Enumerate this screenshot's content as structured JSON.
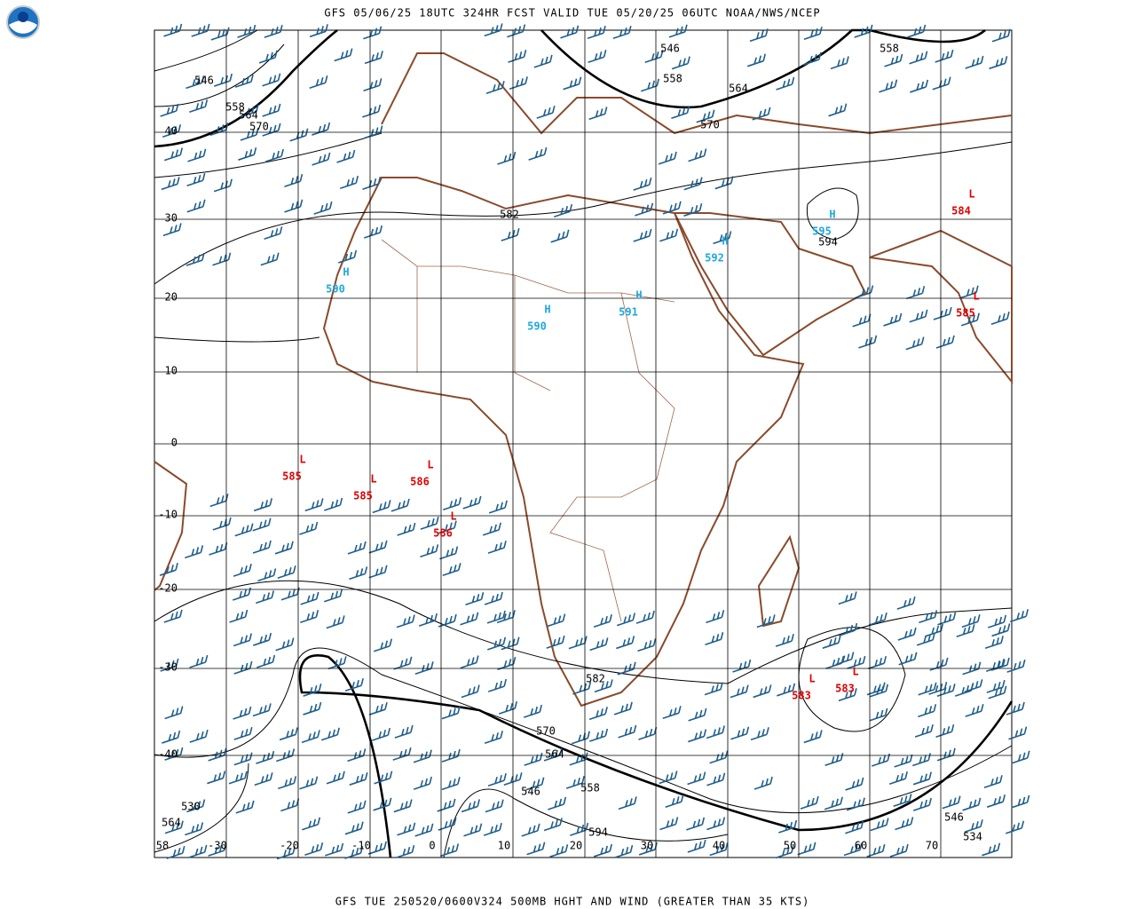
{
  "header": {
    "title": "GFS 05/06/25 18UTC 324HR FCST VALID TUE 05/20/25 06UTC NOAA/NWS/NCEP"
  },
  "footer": {
    "caption": "GFS TUE 250520/0600V324 500MB HGHT AND WIND (GREATER THAN 35 KTS)"
  },
  "map": {
    "lat_labels": [
      "40",
      "30",
      "20",
      "10",
      "0",
      "-10",
      "-20",
      "-30",
      "-40"
    ],
    "lon_labels": [
      "-30",
      "-20",
      "-10",
      "0",
      "10",
      "20",
      "30",
      "40",
      "50",
      "60",
      "70"
    ],
    "contour_labels": [
      "546",
      "558",
      "564",
      "570",
      "546",
      "558",
      "564",
      "570",
      "558",
      "582",
      "594",
      "582",
      "570",
      "564",
      "546",
      "558",
      "594",
      "530",
      "564",
      "546",
      "534",
      "58"
    ],
    "centers": [
      {
        "symbol": "H",
        "value": "590"
      },
      {
        "symbol": "H",
        "value": "590"
      },
      {
        "symbol": "H",
        "value": "591"
      },
      {
        "symbol": "H",
        "value": "592"
      },
      {
        "symbol": "H",
        "value": "595"
      },
      {
        "symbol": "L",
        "value": "584"
      },
      {
        "symbol": "L",
        "value": "585"
      },
      {
        "symbol": "L",
        "value": "585"
      },
      {
        "symbol": "L",
        "value": "585"
      },
      {
        "symbol": "L",
        "value": "586"
      },
      {
        "symbol": "L",
        "value": "586"
      },
      {
        "symbol": "L",
        "value": "583"
      },
      {
        "symbol": "L",
        "value": "583"
      }
    ]
  }
}
